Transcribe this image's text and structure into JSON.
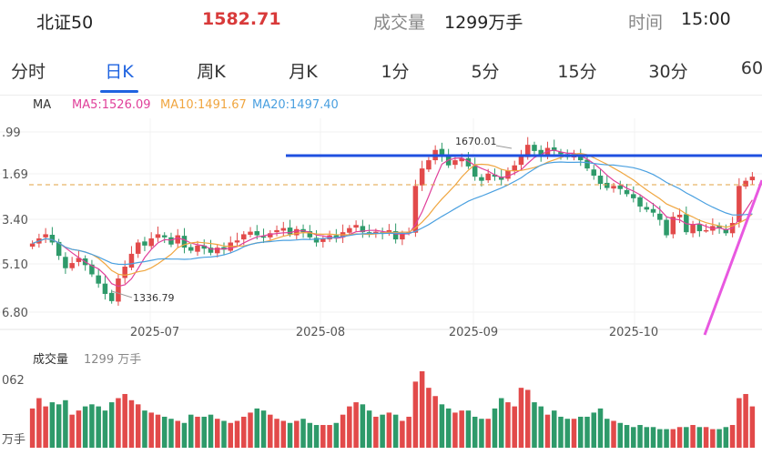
{
  "header": {
    "name": "北证50",
    "price": "1582.71",
    "volume_label": "成交量",
    "volume_value": "1299万手",
    "time_label": "时间",
    "time_value": "15:00"
  },
  "tabs": [
    {
      "label": "分时"
    },
    {
      "label": "日K"
    },
    {
      "label": "周K"
    },
    {
      "label": "月K"
    },
    {
      "label": "1分"
    },
    {
      "label": "5分"
    },
    {
      "label": "15分"
    },
    {
      "label": "30分"
    },
    {
      "label": "60"
    }
  ],
  "active_tab": "日K",
  "ma": {
    "box_label": "MA",
    "ma5": "MA5:1526.09",
    "ma10": "MA10:1491.67",
    "ma20": "MA20:1497.40"
  },
  "colors": {
    "up": "#e24a4a",
    "down": "#2e9a6a",
    "ma5": "#e0409a",
    "ma10": "#f0a640",
    "ma20": "#4aa0e0",
    "resistance": "#1f50e0",
    "trend": "#e858e0",
    "price_line": "#e0a040"
  },
  "chart_data": {
    "type": "candlestick",
    "y_ticks": [
      ".99",
      "1.69",
      "3.40",
      "5.10",
      "6.80"
    ],
    "x_labels": [
      "2025-07",
      "2025-08",
      "2025-09",
      "2025-10"
    ],
    "annotations": {
      "high": "1670.01",
      "low": "1336.79"
    },
    "closes": [
      1460,
      1470,
      1478,
      1462,
      1436,
      1412,
      1422,
      1432,
      1418,
      1400,
      1382,
      1362,
      1348,
      1392,
      1415,
      1440,
      1462,
      1456,
      1470,
      1478,
      1472,
      1458,
      1476,
      1452,
      1446,
      1456,
      1450,
      1442,
      1452,
      1448,
      1462,
      1466,
      1478,
      1483,
      1476,
      1472,
      1480,
      1486,
      1490,
      1478,
      1488,
      1482,
      1472,
      1462,
      1470,
      1476,
      1470,
      1482,
      1490,
      1496,
      1482,
      1477,
      1483,
      1479,
      1486,
      1468,
      1479,
      1482,
      1572,
      1606,
      1622,
      1642,
      1630,
      1612,
      1622,
      1626,
      1610,
      1590,
      1582,
      1596,
      1590,
      1584,
      1602,
      1612,
      1630,
      1652,
      1640,
      1630,
      1646,
      1640,
      1634,
      1628,
      1630,
      1622,
      1606,
      1592,
      1576,
      1568,
      1572,
      1566,
      1556,
      1548,
      1532,
      1526,
      1520,
      1506,
      1476,
      1512,
      1516,
      1482,
      1498,
      1484,
      1486,
      1494,
      1490,
      1480,
      1500,
      1572,
      1582,
      1590
    ],
    "volume_label": "成交量",
    "volume_value": "1299 万手",
    "volume_max_tick": "062",
    "volume_unit": "万手",
    "volumes": [
      38,
      48,
      40,
      44,
      42,
      46,
      32,
      36,
      40,
      42,
      40,
      36,
      44,
      48,
      52,
      46,
      42,
      36,
      34,
      32,
      30,
      28,
      26,
      24,
      32,
      30,
      30,
      32,
      28,
      26,
      24,
      26,
      30,
      34,
      38,
      36,
      32,
      28,
      26,
      24,
      26,
      28,
      24,
      22,
      22,
      22,
      24,
      32,
      40,
      44,
      42,
      36,
      30,
      32,
      34,
      32,
      26,
      30,
      64,
      74,
      58,
      50,
      42,
      38,
      34,
      36,
      36,
      30,
      28,
      28,
      38,
      48,
      44,
      40,
      58,
      56,
      44,
      40,
      32,
      36,
      30,
      28,
      28,
      30,
      30,
      34,
      38,
      28,
      26,
      24,
      22,
      20,
      22,
      20,
      20,
      18,
      18,
      18,
      20,
      20,
      22,
      20,
      20,
      18,
      18,
      20,
      22,
      48,
      52,
      40
    ]
  }
}
